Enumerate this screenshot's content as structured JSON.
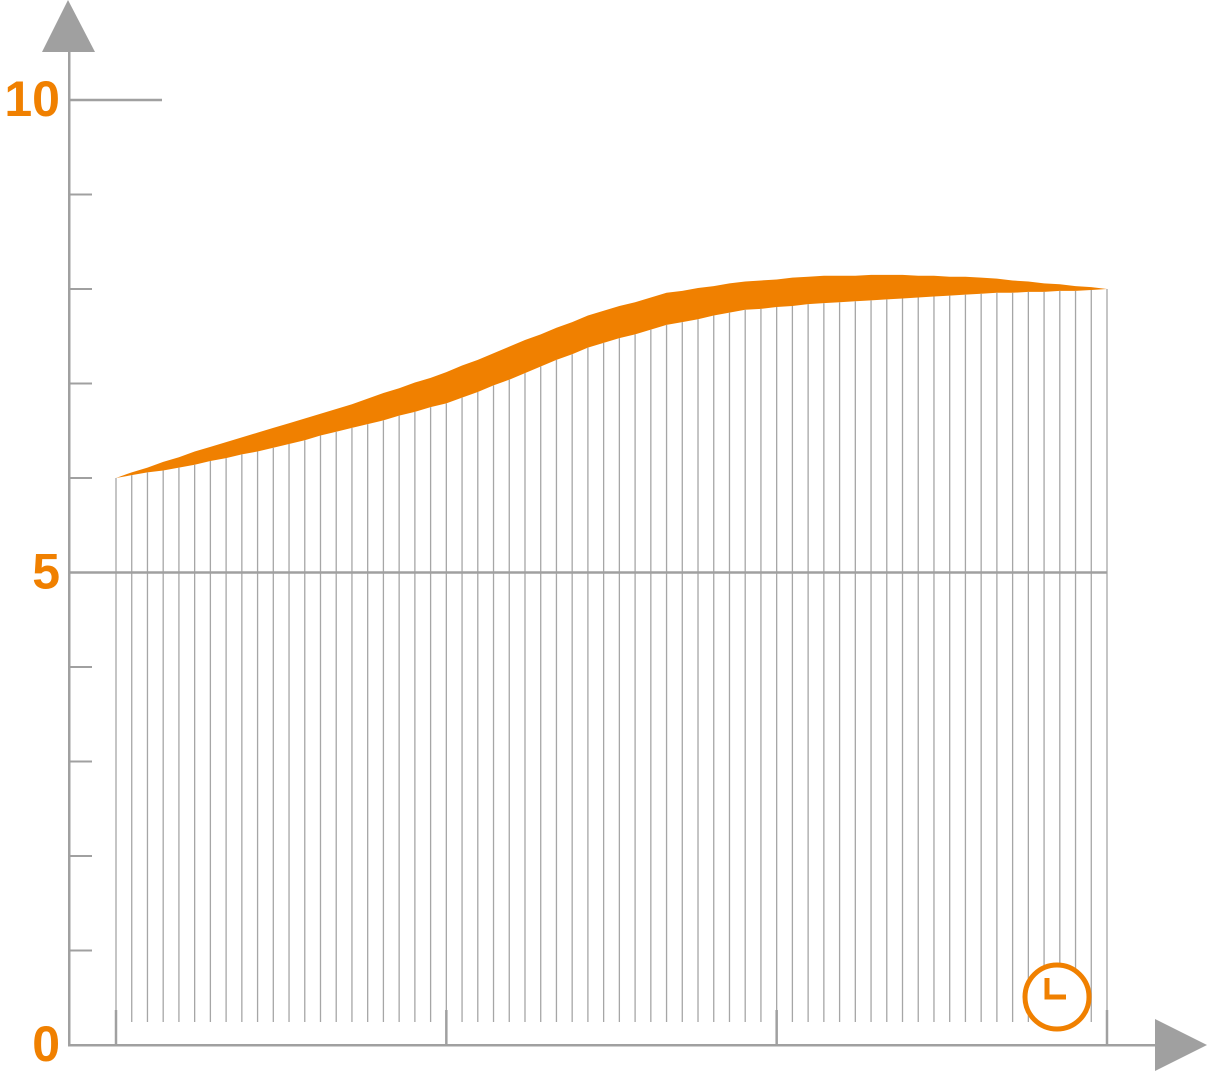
{
  "chart_data": {
    "type": "area",
    "x": [
      0,
      1,
      2,
      3,
      4,
      5,
      6,
      7,
      8,
      9,
      10,
      11,
      12,
      13,
      14,
      15,
      16,
      17,
      18,
      19,
      20,
      21,
      22,
      23,
      24,
      25,
      26,
      27,
      28,
      29,
      30,
      31,
      32,
      33,
      34,
      35,
      36,
      37,
      38,
      39,
      40,
      41,
      42,
      43,
      44,
      45,
      46,
      47,
      48,
      49,
      50,
      51,
      52,
      53,
      54,
      55,
      56,
      57,
      58,
      59,
      60,
      61,
      62,
      63
    ],
    "series": [
      {
        "color": "#a6a6a6",
        "values": [
          6.0,
          6.03,
          6.06,
          6.08,
          6.11,
          6.14,
          6.18,
          6.21,
          6.25,
          6.28,
          6.32,
          6.36,
          6.4,
          6.45,
          6.49,
          6.53,
          6.57,
          6.61,
          6.66,
          6.7,
          6.75,
          6.79,
          6.85,
          6.91,
          6.98,
          7.04,
          7.11,
          7.18,
          7.25,
          7.31,
          7.38,
          7.43,
          7.48,
          7.52,
          7.57,
          7.62,
          7.65,
          7.68,
          7.72,
          7.75,
          7.78,
          7.79,
          7.81,
          7.82,
          7.84,
          7.85,
          7.86,
          7.87,
          7.88,
          7.89,
          7.9,
          7.91,
          7.92,
          7.93,
          7.94,
          7.95,
          7.96,
          7.96,
          7.97,
          7.97,
          7.98,
          7.98,
          7.99,
          8.0
        ]
      },
      {
        "color": "#f08000",
        "values": [
          6.0,
          6.06,
          6.11,
          6.17,
          6.22,
          6.28,
          6.33,
          6.38,
          6.43,
          6.48,
          6.53,
          6.58,
          6.63,
          6.68,
          6.73,
          6.78,
          6.84,
          6.9,
          6.95,
          7.01,
          7.06,
          7.12,
          7.19,
          7.25,
          7.32,
          7.39,
          7.46,
          7.52,
          7.59,
          7.65,
          7.72,
          7.77,
          7.82,
          7.86,
          7.91,
          7.96,
          7.98,
          8.01,
          8.03,
          8.06,
          8.08,
          8.09,
          8.1,
          8.12,
          8.13,
          8.14,
          8.14,
          8.14,
          8.15,
          8.15,
          8.15,
          8.14,
          8.14,
          8.13,
          8.13,
          8.12,
          8.11,
          8.09,
          8.08,
          8.06,
          8.05,
          8.03,
          8.02,
          8.0
        ]
      }
    ],
    "xlim": [
      0,
      63
    ],
    "xticks": [
      0,
      21,
      42,
      63
    ],
    "ylim": [
      0,
      10
    ],
    "yticks": [
      0,
      5,
      10
    ],
    "minor_yticks": [
      1,
      2,
      3,
      4,
      6,
      7,
      8,
      9
    ],
    "label_color": "#f08000",
    "axis_color": "#a0a0a0"
  }
}
